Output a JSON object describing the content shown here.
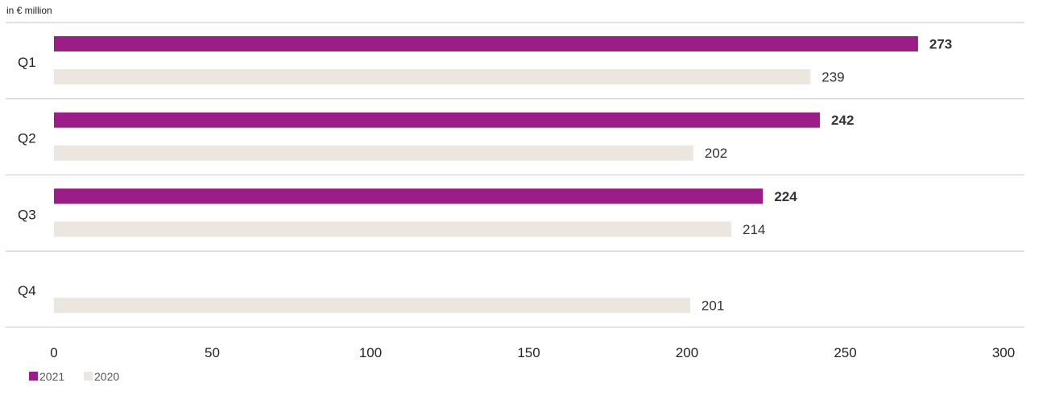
{
  "chart_data": {
    "type": "bar",
    "orientation": "horizontal",
    "unit_label": "in € million",
    "categories": [
      "Q1",
      "Q2",
      "Q3",
      "Q4"
    ],
    "series": [
      {
        "name": "2021",
        "color": "#9b1d87",
        "values": [
          273,
          242,
          224,
          null
        ],
        "label_weight": "bold"
      },
      {
        "name": "2020",
        "color": "#ebe6df",
        "values": [
          239,
          202,
          214,
          201
        ],
        "label_weight": "normal"
      }
    ],
    "xlim": [
      0,
      300
    ],
    "xticks": [
      0,
      50,
      100,
      150,
      200,
      250,
      300
    ],
    "legend_position": "bottom-left"
  }
}
